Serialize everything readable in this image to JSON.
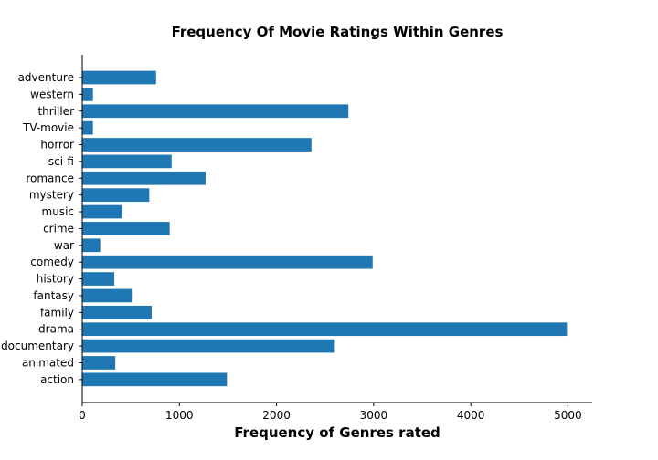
{
  "chart_data": {
    "type": "bar",
    "orientation": "horizontal",
    "title": "Frequency Of Movie Ratings Within Genres",
    "xlabel": "Frequency of Genres rated",
    "ylabel": "",
    "xlim": [
      0,
      5250
    ],
    "xticks": [
      0,
      1000,
      2000,
      3000,
      4000,
      5000
    ],
    "xtick_labels": [
      "0",
      "1000",
      "2000",
      "3000",
      "4000",
      "5000"
    ],
    "grid": false,
    "bar_color": "#1f77b4",
    "categories": [
      "adventure",
      "western",
      "thriller",
      "TV-movie",
      "horror",
      "sci-fi",
      "romance",
      "mystery",
      "music",
      "crime",
      "war",
      "comedy",
      "history",
      "fantasy",
      "family",
      "drama",
      "documentary",
      "animated",
      "action"
    ],
    "values": [
      760,
      110,
      2740,
      110,
      2360,
      920,
      1270,
      690,
      410,
      900,
      185,
      2990,
      330,
      510,
      715,
      4990,
      2600,
      340,
      1490
    ]
  }
}
